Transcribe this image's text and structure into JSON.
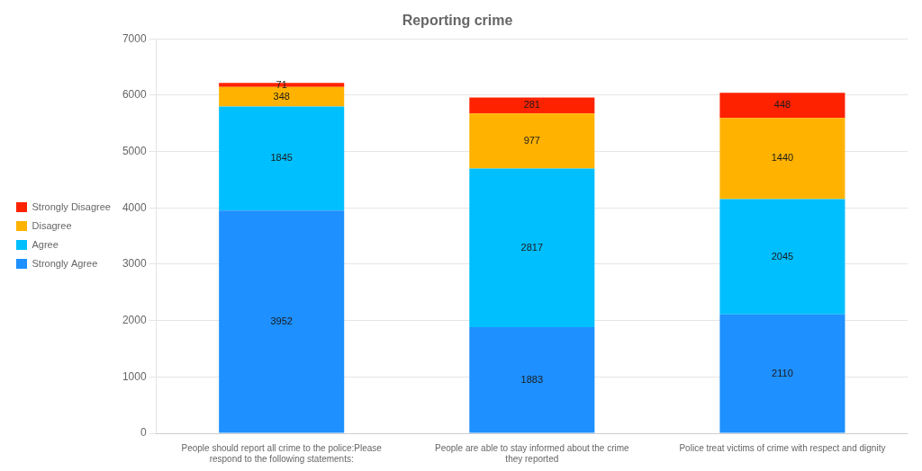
{
  "chart_data": {
    "type": "bar",
    "title": "Reporting crime",
    "categories": [
      "People should report all crime to the police:Please\nrespond to the following statements:",
      "People are able to stay informed about the crime\nthey reported",
      "Police treat victims of crime with respect and dignity"
    ],
    "series": [
      {
        "name": "Strongly Agree",
        "color": "#1E90FF",
        "values": [
          3952,
          1883,
          2110
        ]
      },
      {
        "name": "Agree",
        "color": "#00BFFF",
        "values": [
          1845,
          2817,
          2045
        ]
      },
      {
        "name": "Disagree",
        "color": "#FFB300",
        "values": [
          348,
          977,
          1440
        ]
      },
      {
        "name": "Strongly Disagree",
        "color": "#FF2200",
        "values": [
          71,
          281,
          448
        ]
      }
    ],
    "stacked": true,
    "data_labels": true,
    "ylim": [
      0,
      7000
    ],
    "yticks": [
      0,
      1000,
      2000,
      3000,
      4000,
      5000,
      6000,
      7000
    ],
    "grid": true,
    "legend": "left"
  }
}
